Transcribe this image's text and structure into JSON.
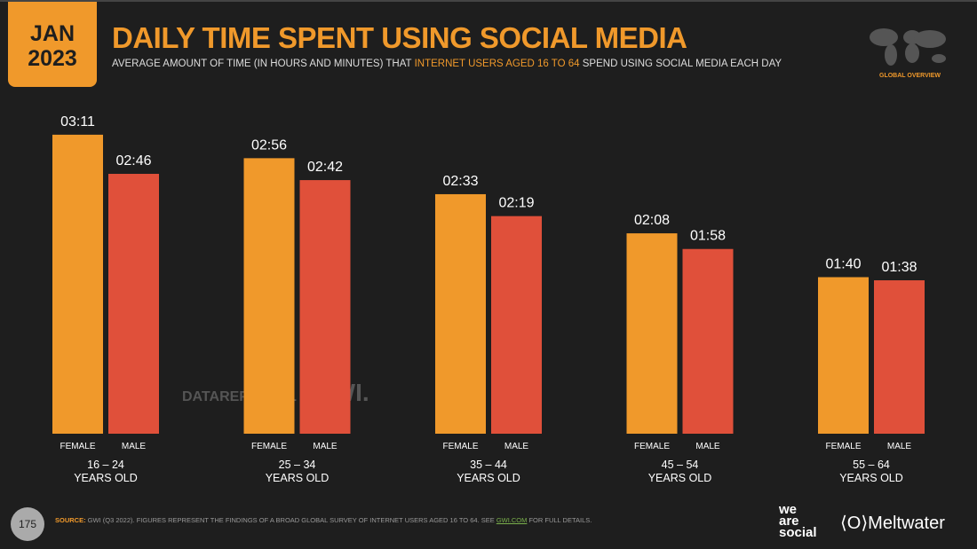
{
  "header": {
    "month": "JAN",
    "year": "2023",
    "title": "DAILY TIME SPENT USING SOCIAL MEDIA",
    "subtitle_pre": "AVERAGE AMOUNT OF TIME (IN HOURS AND MINUTES) THAT ",
    "subtitle_highlight": "INTERNET USERS AGED 16 TO 64",
    "subtitle_post": " SPEND USING SOCIAL MEDIA EACH DAY",
    "region": "GLOBAL OVERVIEW"
  },
  "watermark": {
    "left": "DATAREPORTAL",
    "right": "GWI."
  },
  "footer": {
    "page": "175",
    "source_label": "SOURCE:",
    "source_text": " GWI (Q3 2022). FIGURES REPRESENT THE FINDINGS OF A BROAD GLOBAL SURVEY OF INTERNET USERS AGED 16 TO 64. SEE ",
    "source_link": "GWI.COM",
    "source_end": " FOR FULL DETAILS.",
    "brand1": "we are social",
    "brand2": "Meltwater"
  },
  "colors": {
    "female": "#f0992b",
    "male": "#e0503a",
    "accent": "#f0992b"
  },
  "chart_data": {
    "type": "bar",
    "title": "DAILY TIME SPENT USING SOCIAL MEDIA",
    "categories": [
      "16 – 24",
      "25 – 34",
      "35 – 44",
      "45 – 54",
      "55 – 64"
    ],
    "category_sublabel": "YEARS OLD",
    "series": [
      {
        "name": "FEMALE",
        "values": [
          "03:11",
          "02:56",
          "02:33",
          "02:08",
          "01:40"
        ]
      },
      {
        "name": "MALE",
        "values": [
          "02:46",
          "02:42",
          "02:19",
          "01:58",
          "01:38"
        ]
      }
    ],
    "unit": "hours:minutes"
  }
}
